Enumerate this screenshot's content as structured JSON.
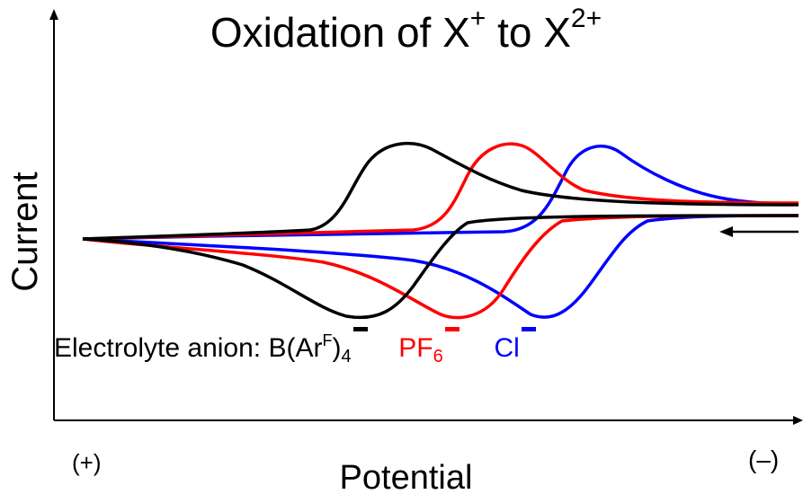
{
  "title": {
    "text": "Oxidation of X",
    "sup1": "+",
    "mid": " to X",
    "sup2": "2+"
  },
  "axes": {
    "ylabel": "Current",
    "xlabel": "Potential",
    "x_left": "(+)",
    "x_right": "(–)"
  },
  "legend": {
    "prefix": "Electrolyte anion: ",
    "anion1": {
      "main": "B(Ar",
      "sup": "F",
      "close": ")",
      "sub": "4",
      "color": "#000000"
    },
    "anion2": {
      "main": "PF",
      "sub": "6",
      "color": "#ff0000"
    },
    "anion3": {
      "main": "Cl",
      "color": "#0000ff"
    }
  },
  "colors": {
    "black": "#000000",
    "red": "#ff0000",
    "blue": "#0000ff"
  },
  "scan_direction": "right-to-left",
  "traces": [
    {
      "name": "B(ArF)4-",
      "color": "#000000",
      "oxidation_peak": 0.43,
      "reduction_peak": 0.36
    },
    {
      "name": "PF6-",
      "color": "#ff0000",
      "oxidation_peak": 0.55,
      "reduction_peak": 0.48
    },
    {
      "name": "Cl-",
      "color": "#0000ff",
      "oxidation_peak": 0.65,
      "reduction_peak": 0.6
    }
  ]
}
